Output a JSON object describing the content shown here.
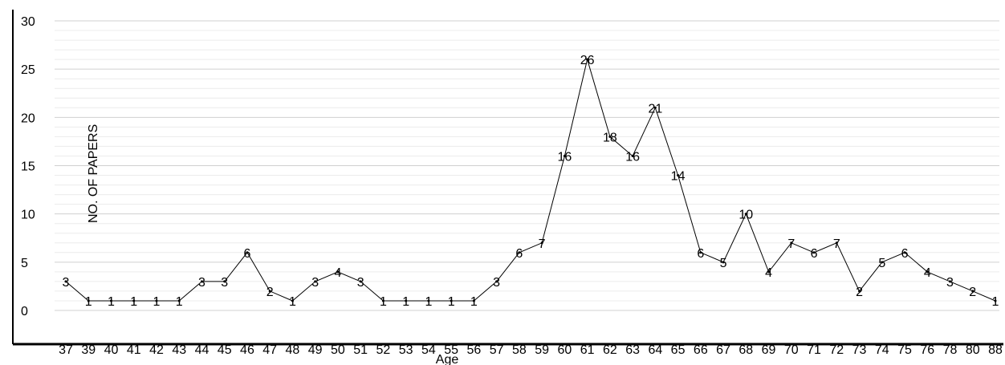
{
  "chart_data": {
    "type": "line",
    "xlabel": "Age",
    "ylabel": "NO. OF PAPERS",
    "ylim": [
      0,
      30
    ],
    "yticks": [
      0,
      5,
      10,
      15,
      20,
      25,
      30
    ],
    "grid": true,
    "legend": "none",
    "line_color": "#000000",
    "grid_color": "#d9d9d9",
    "categories": [
      "37",
      "39",
      "40",
      "41",
      "42",
      "43",
      "44",
      "45",
      "46",
      "47",
      "48",
      "49",
      "50",
      "51",
      "52",
      "53",
      "54",
      "55",
      "56",
      "57",
      "58",
      "59",
      "60",
      "61",
      "62",
      "63",
      "64",
      "65",
      "66",
      "67",
      "68",
      "69",
      "70",
      "71",
      "72",
      "73",
      "74",
      "75",
      "76",
      "78",
      "80",
      "88"
    ],
    "series": [
      {
        "values": [
          3,
          1,
          1,
          1,
          1,
          1,
          3,
          3,
          6,
          2,
          1,
          3,
          4,
          3,
          1,
          1,
          1,
          1,
          1,
          3,
          6,
          7,
          16,
          26,
          18,
          16,
          21,
          14,
          6,
          5,
          10,
          4,
          7,
          6,
          7,
          2,
          5,
          6,
          4,
          3,
          2,
          1
        ]
      }
    ]
  }
}
